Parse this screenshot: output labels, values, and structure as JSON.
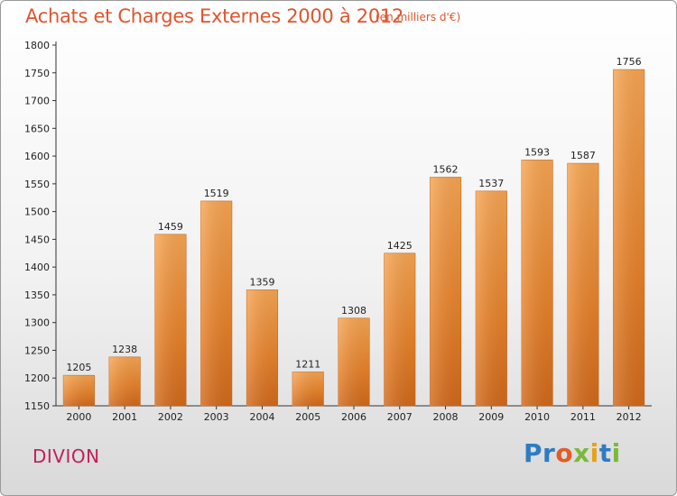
{
  "chart_data": {
    "type": "bar",
    "title": "Achats et Charges Externes 2000 à 2012",
    "subtitle": "(en milliers d'€)",
    "categories": [
      "2000",
      "2001",
      "2002",
      "2003",
      "2004",
      "2005",
      "2006",
      "2007",
      "2008",
      "2009",
      "2010",
      "2011",
      "2012"
    ],
    "values": [
      1205,
      1238,
      1459,
      1519,
      1359,
      1211,
      1308,
      1425,
      1562,
      1537,
      1593,
      1587,
      1756
    ],
    "ylim": [
      1150,
      1800
    ],
    "yticks": [
      1150,
      1200,
      1250,
      1300,
      1350,
      1400,
      1450,
      1500,
      1550,
      1600,
      1650,
      1700,
      1750,
      1800
    ],
    "xlabel": "",
    "ylabel": "",
    "bar_color": "#f0913a",
    "grid": false
  },
  "commune": "DIVION",
  "logo": {
    "text": "Proxiti"
  }
}
